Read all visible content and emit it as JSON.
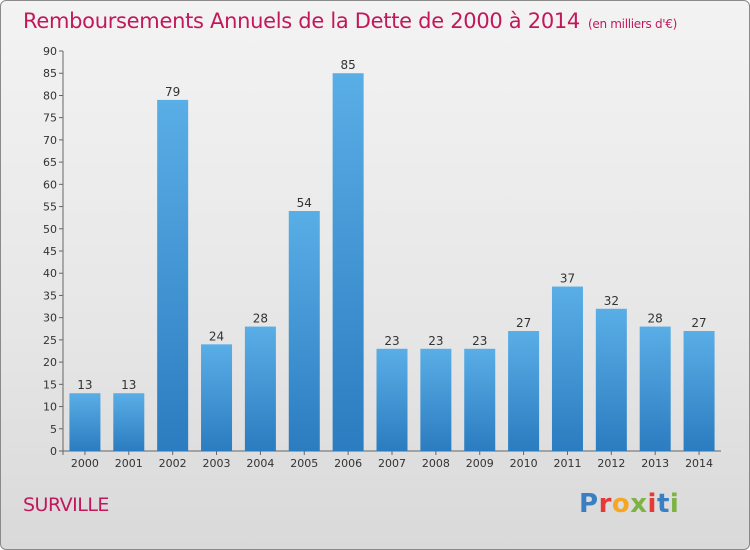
{
  "title": "Remboursements Annuels de la Dette de 2000 à 2014",
  "unit": "(en milliers d'€)",
  "commune": "SURVILLE",
  "logo": {
    "text": "Proxiti",
    "letter_colors": [
      "#3a7fc1",
      "#e53935",
      "#f5a623",
      "#7cb342",
      "#e53935",
      "#3a7fc1",
      "#7cb342"
    ]
  },
  "colors": {
    "bar_top": "#5aaee6",
    "bar_bottom": "#2b7cc0",
    "accent": "#c2185b"
  },
  "chart_data": {
    "type": "bar",
    "categories": [
      "2000",
      "2001",
      "2002",
      "2003",
      "2004",
      "2005",
      "2006",
      "2007",
      "2008",
      "2009",
      "2010",
      "2011",
      "2012",
      "2013",
      "2014"
    ],
    "values": [
      13,
      13,
      79,
      24,
      28,
      54,
      85,
      23,
      23,
      23,
      27,
      37,
      32,
      28,
      27
    ],
    "ylim": [
      0,
      90
    ],
    "yticks": [
      0,
      5,
      10,
      15,
      20,
      25,
      30,
      35,
      40,
      45,
      50,
      55,
      60,
      65,
      70,
      75,
      80,
      85,
      90
    ],
    "grid": false,
    "data_labels": true
  }
}
